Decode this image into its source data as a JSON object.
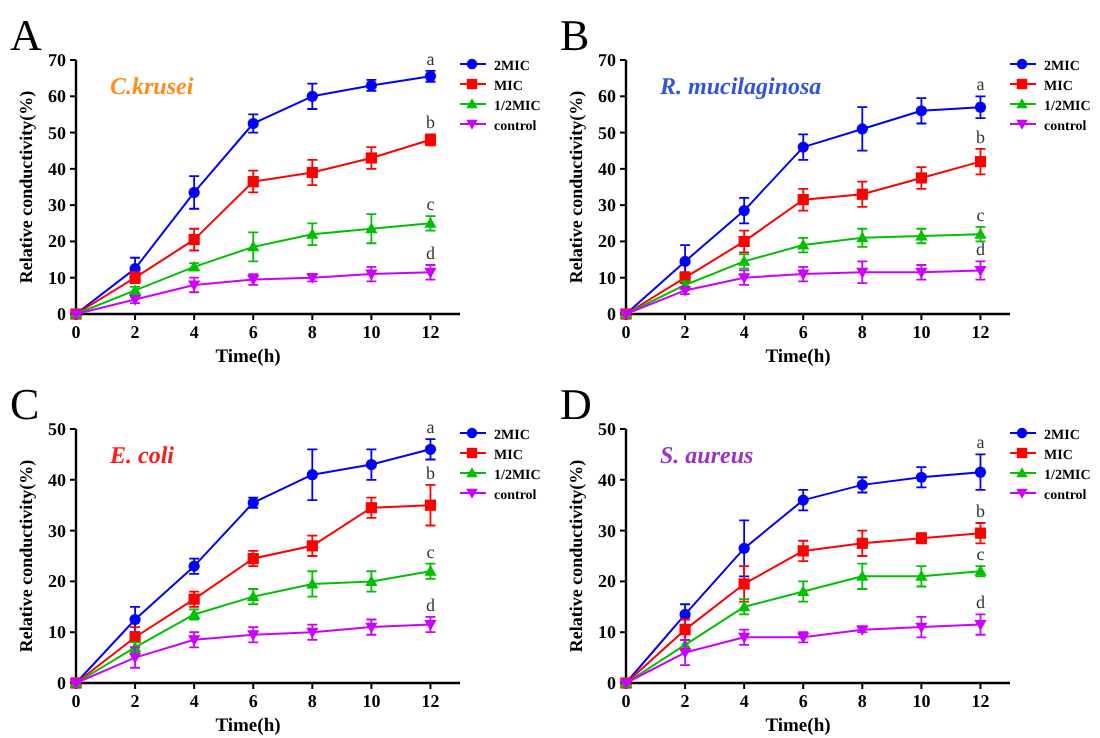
{
  "chart_data": [
    {
      "type": "line",
      "title": "A",
      "xlabel": "Time(h)",
      "ylabel": "Relative conductivity(%)",
      "x": [
        0,
        2,
        4,
        6,
        8,
        10,
        12
      ],
      "xlim": [
        0,
        13
      ],
      "xticks": [
        0,
        2,
        4,
        6,
        8,
        10,
        12
      ],
      "ylim": [
        0,
        70
      ],
      "yticks": [
        0,
        10,
        20,
        30,
        40,
        50,
        60,
        70
      ],
      "legend": "right",
      "grid": false,
      "annotations": [
        "C.krusei",
        "a",
        "b",
        "c",
        "d"
      ],
      "series": [
        {
          "name": "2MIC",
          "color": "#0000ff",
          "marker": "circle",
          "values": [
            0,
            12.5,
            33.5,
            52.5,
            60,
            63,
            65.5
          ],
          "errors": [
            0,
            3,
            4.5,
            2.5,
            3.5,
            1.5,
            1.5
          ]
        },
        {
          "name": "MIC",
          "color": "#ff0000",
          "marker": "square",
          "values": [
            0,
            10,
            20.5,
            36.5,
            39,
            43,
            48
          ],
          "errors": [
            0,
            1.5,
            3,
            3,
            3.5,
            3,
            1.5
          ]
        },
        {
          "name": "1/2MIC",
          "color": "#00c000",
          "marker": "triangle",
          "values": [
            0,
            6.5,
            13,
            18.5,
            22,
            23.5,
            25
          ],
          "errors": [
            0,
            1,
            1,
            4,
            3,
            4,
            2
          ]
        },
        {
          "name": "control",
          "color": "#cc00ff",
          "marker": "triangle-down",
          "values": [
            0,
            4,
            8,
            9.5,
            10,
            11,
            11.5
          ],
          "errors": [
            0,
            1,
            2,
            1.5,
            1,
            2,
            2
          ]
        }
      ]
    },
    {
      "type": "line",
      "title": "B",
      "xlabel": "Time(h)",
      "ylabel": "Relative conductivity(%)",
      "x": [
        0,
        2,
        4,
        6,
        8,
        10,
        12
      ],
      "xlim": [
        0,
        13
      ],
      "xticks": [
        0,
        2,
        4,
        6,
        8,
        10,
        12
      ],
      "ylim": [
        0,
        70
      ],
      "yticks": [
        0,
        10,
        20,
        30,
        40,
        50,
        60,
        70
      ],
      "legend": "right",
      "grid": false,
      "annotations": [
        "R. mucilaginosa",
        "a",
        "b",
        "c",
        "d"
      ],
      "series": [
        {
          "name": "2MIC",
          "color": "#0000ff",
          "marker": "circle",
          "values": [
            0,
            14.5,
            28.5,
            46,
            51,
            56,
            57
          ],
          "errors": [
            0,
            4.5,
            3.5,
            3.5,
            6,
            3.5,
            3
          ]
        },
        {
          "name": "MIC",
          "color": "#ff0000",
          "marker": "square",
          "values": [
            0,
            10,
            20,
            31.5,
            33,
            37.5,
            42
          ],
          "errors": [
            0,
            1.5,
            3,
            3,
            3.5,
            3,
            3.5
          ]
        },
        {
          "name": "1/2MIC",
          "color": "#00c000",
          "marker": "triangle",
          "values": [
            0,
            8,
            14.5,
            19,
            21,
            21.5,
            22
          ],
          "errors": [
            0,
            1,
            2,
            2,
            2.5,
            2,
            2
          ]
        },
        {
          "name": "control",
          "color": "#cc00ff",
          "marker": "triangle-down",
          "values": [
            0,
            6.5,
            10,
            11,
            11.5,
            11.5,
            12
          ],
          "errors": [
            0,
            1,
            2,
            2,
            3,
            2,
            2.5
          ]
        }
      ]
    },
    {
      "type": "line",
      "title": "C",
      "xlabel": "Time(h)",
      "ylabel": "Relative conductivity(%)",
      "x": [
        0,
        2,
        4,
        6,
        8,
        10,
        12
      ],
      "xlim": [
        0,
        13
      ],
      "xticks": [
        0,
        2,
        4,
        6,
        8,
        10,
        12
      ],
      "ylim": [
        0,
        50
      ],
      "yticks": [
        0,
        10,
        20,
        30,
        40,
        50
      ],
      "legend": "right",
      "grid": false,
      "annotations": [
        "E. coli",
        "a",
        "b",
        "c",
        "d"
      ],
      "series": [
        {
          "name": "2MIC",
          "color": "#0000ff",
          "marker": "circle",
          "values": [
            0,
            12.5,
            23,
            35.5,
            41,
            43,
            46
          ],
          "errors": [
            0,
            2.5,
            1.5,
            1,
            5,
            3,
            2
          ]
        },
        {
          "name": "MIC",
          "color": "#ff0000",
          "marker": "square",
          "values": [
            0,
            9,
            16.5,
            24.5,
            27,
            34.5,
            35
          ],
          "errors": [
            0,
            2,
            1.5,
            1.5,
            2,
            2,
            4
          ]
        },
        {
          "name": "1/2MIC",
          "color": "#00c000",
          "marker": "triangle",
          "values": [
            0,
            7,
            13.5,
            17,
            19.5,
            20,
            22
          ],
          "errors": [
            0,
            1,
            1,
            1.5,
            2.5,
            2,
            1.5
          ]
        },
        {
          "name": "control",
          "color": "#cc00ff",
          "marker": "triangle-down",
          "values": [
            0,
            5,
            8.5,
            9.5,
            10,
            11,
            11.5
          ],
          "errors": [
            0,
            2,
            1.5,
            1.5,
            1.5,
            1.5,
            1.5
          ]
        }
      ]
    },
    {
      "type": "line",
      "title": "D",
      "xlabel": "Time(h)",
      "ylabel": "Relative conductivity(%)",
      "x": [
        0,
        2,
        4,
        6,
        8,
        10,
        12
      ],
      "xlim": [
        0,
        13
      ],
      "xticks": [
        0,
        2,
        4,
        6,
        8,
        10,
        12
      ],
      "ylim": [
        0,
        50
      ],
      "yticks": [
        0,
        10,
        20,
        30,
        40,
        50
      ],
      "legend": "right",
      "grid": false,
      "annotations": [
        "S. aureus",
        "a",
        "b",
        "c",
        "d"
      ],
      "series": [
        {
          "name": "2MIC",
          "color": "#0000ff",
          "marker": "circle",
          "values": [
            0,
            13.5,
            26.5,
            36,
            39,
            40.5,
            41.5
          ],
          "errors": [
            0,
            2,
            5.5,
            2,
            1.5,
            2,
            3.5
          ]
        },
        {
          "name": "MIC",
          "color": "#ff0000",
          "marker": "square",
          "values": [
            0,
            10.5,
            19.5,
            26,
            27.5,
            28.5,
            29.5
          ],
          "errors": [
            0,
            2,
            3.5,
            2,
            2.5,
            1,
            2
          ]
        },
        {
          "name": "1/2MIC",
          "color": "#00c000",
          "marker": "triangle",
          "values": [
            0,
            7.5,
            15,
            18,
            21,
            21,
            22
          ],
          "errors": [
            0,
            1,
            1.5,
            2,
            2.5,
            2,
            1
          ]
        },
        {
          "name": "control",
          "color": "#cc00ff",
          "marker": "triangle-down",
          "values": [
            0,
            6,
            9,
            9,
            10.5,
            11,
            11.5
          ],
          "errors": [
            0,
            2.5,
            1.5,
            1,
            0.5,
            2,
            2
          ]
        }
      ]
    }
  ]
}
